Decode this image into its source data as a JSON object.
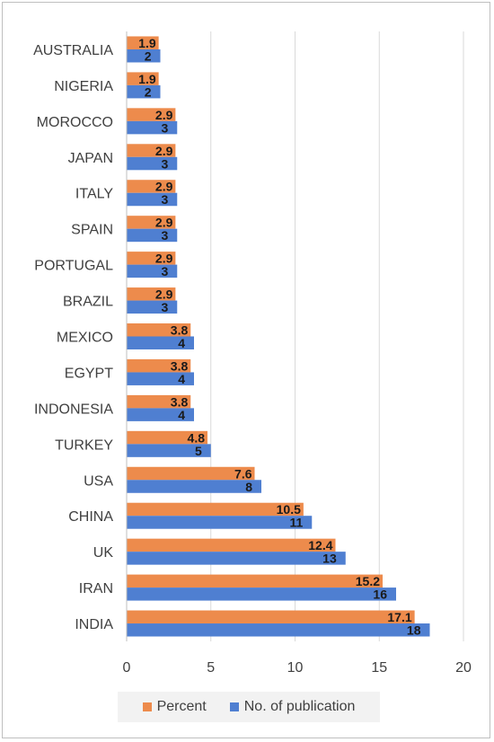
{
  "chart_data": {
    "type": "bar",
    "orientation": "horizontal",
    "categories": [
      "AUSTRALIA",
      "NIGERIA",
      "MOROCCO",
      "JAPAN",
      "ITALY",
      "SPAIN",
      "PORTUGAL",
      "BRAZIL",
      "MEXICO",
      "EGYPT",
      "INDONESIA",
      "TURKEY",
      "USA",
      "CHINA",
      "UK",
      "IRAN",
      "INDIA"
    ],
    "series": [
      {
        "name": "Percent",
        "color": "#ed8b4c",
        "values": [
          1.9,
          1.9,
          2.9,
          2.9,
          2.9,
          2.9,
          2.9,
          2.9,
          3.8,
          3.8,
          3.8,
          4.8,
          7.6,
          10.5,
          12.4,
          15.2,
          17.1
        ]
      },
      {
        "name": "No. of publication",
        "color": "#4f7fd1",
        "values": [
          2,
          2,
          3,
          3,
          3,
          3,
          3,
          3,
          4,
          4,
          4,
          5,
          8,
          11,
          13,
          16,
          18
        ]
      }
    ],
    "xlim": [
      0,
      20
    ],
    "xticks": [
      "0",
      "5",
      "10",
      "15",
      "20"
    ],
    "grid": "vertical",
    "legend_position": "bottom"
  }
}
